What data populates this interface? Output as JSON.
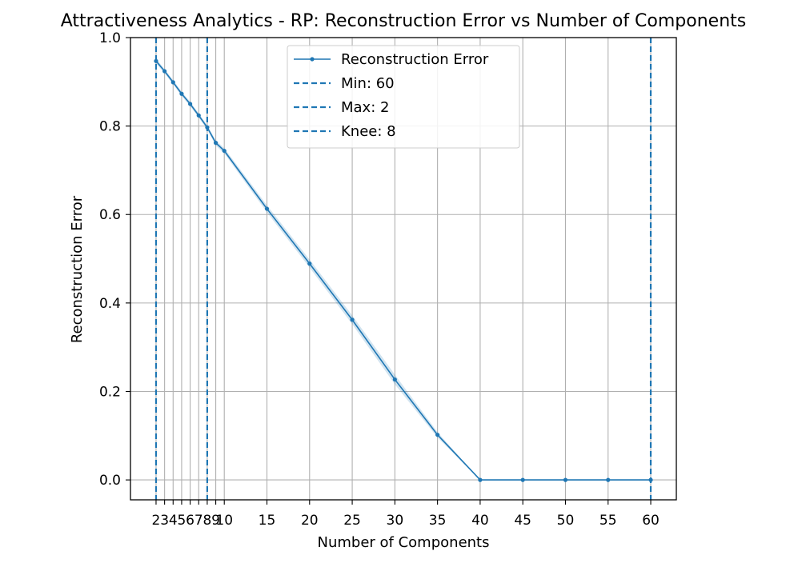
{
  "chart_data": {
    "type": "line",
    "title": "Attractiveness Analytics - RP: Reconstruction Error vs Number of Components",
    "xlabel": "Number of Components",
    "ylabel": "Reconstruction Error",
    "xlim": [
      -1,
      63
    ],
    "ylim": [
      -0.045,
      1.0
    ],
    "grid": true,
    "legend_position": "top-center",
    "x": [
      2,
      3,
      4,
      5,
      6,
      7,
      8,
      9,
      10,
      15,
      20,
      25,
      30,
      35,
      40,
      45,
      50,
      55,
      60
    ],
    "x_ticks": [
      2,
      3,
      4,
      5,
      6,
      7,
      8,
      9,
      10,
      15,
      20,
      25,
      30,
      35,
      40,
      45,
      50,
      55,
      60
    ],
    "y_ticks": [
      0.0,
      0.2,
      0.4,
      0.6,
      0.8,
      1.0
    ],
    "y_tick_labels": [
      "0.0",
      "0.2",
      "0.4",
      "0.6",
      "0.8",
      "1.0"
    ],
    "series": [
      {
        "name": "Reconstruction Error",
        "color": "#1f77b4",
        "values": [
          0.947,
          0.924,
          0.899,
          0.873,
          0.85,
          0.824,
          0.797,
          0.762,
          0.744,
          0.613,
          0.489,
          0.362,
          0.227,
          0.102,
          0.0,
          0.0,
          0.0,
          0.0,
          0.0
        ],
        "band": [
          0.005,
          0.005,
          0.005,
          0.005,
          0.005,
          0.005,
          0.005,
          0.006,
          0.006,
          0.008,
          0.009,
          0.01,
          0.011,
          0.006,
          0.0,
          0.0,
          0.0,
          0.0,
          0.0
        ]
      }
    ],
    "vlines": [
      {
        "name": "Min: 60",
        "x": 60,
        "color": "#1f77b4",
        "style": "dashed"
      },
      {
        "name": "Max: 2",
        "x": 2,
        "color": "#1f77b4",
        "style": "dashed"
      },
      {
        "name": "Knee: 8",
        "x": 8,
        "color": "#1f77b4",
        "style": "dashed"
      }
    ]
  }
}
